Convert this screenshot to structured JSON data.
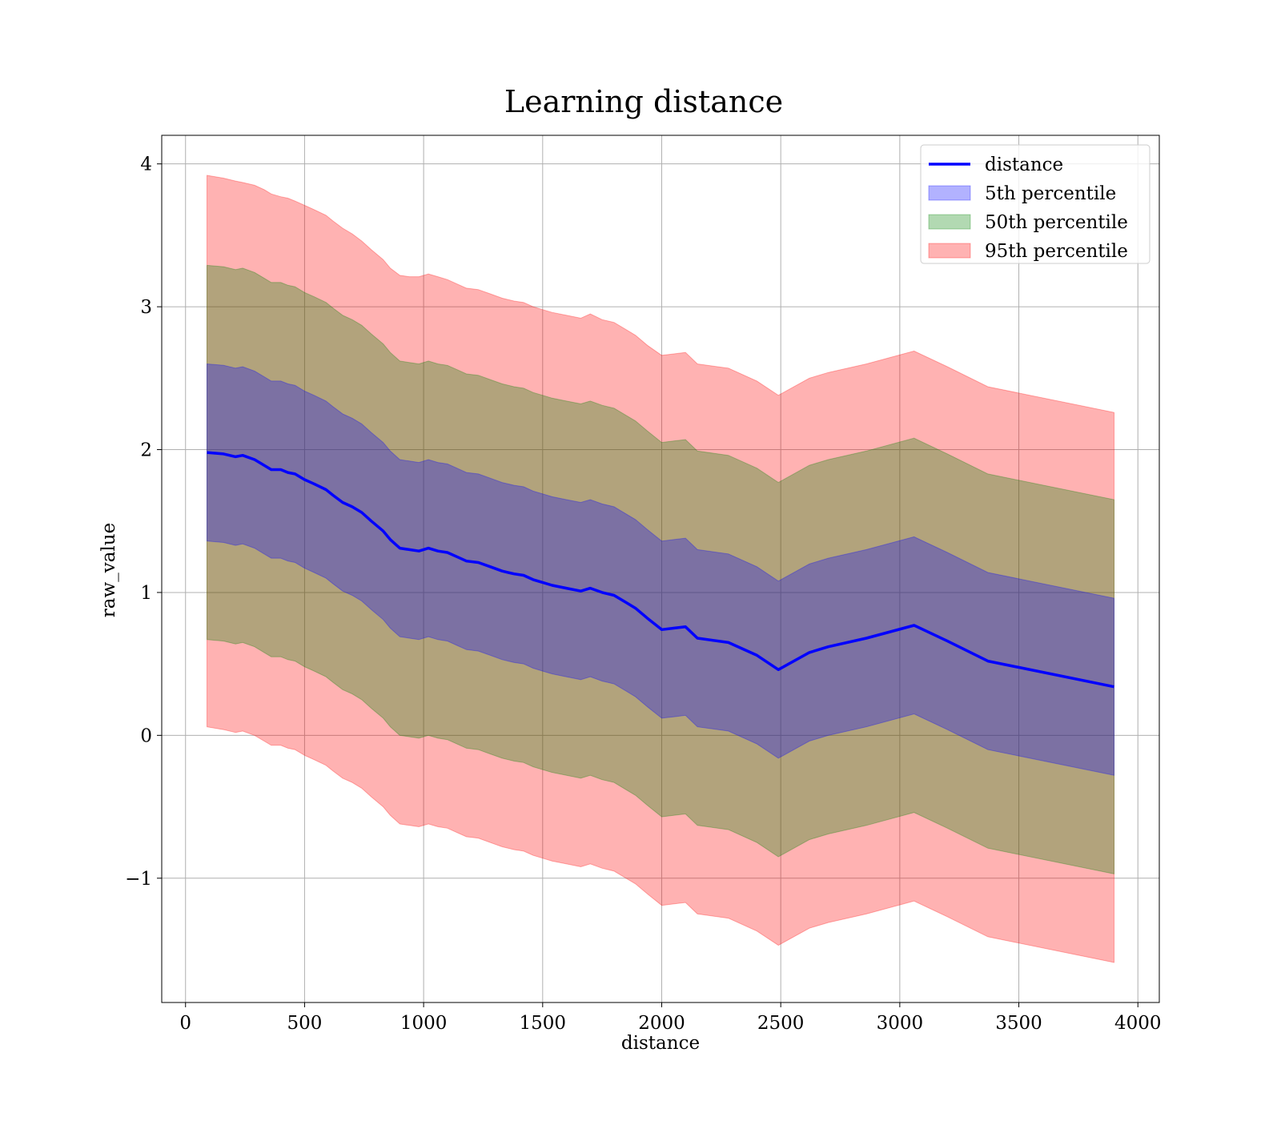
{
  "chart_data": {
    "type": "line",
    "title": "Learning distance",
    "xlabel": "distance",
    "ylabel": "raw_value",
    "xlim": [
      -100,
      4090
    ],
    "ylim": [
      -1.87,
      4.2
    ],
    "xticks": [
      0,
      500,
      1000,
      1500,
      2000,
      2500,
      3000,
      3500,
      4000
    ],
    "yticks": [
      -1,
      0,
      1,
      2,
      3,
      4
    ],
    "ytick_labels": [
      "−1",
      "0",
      "1",
      "2",
      "3",
      "4"
    ],
    "grid": true,
    "legend_position": "top-right",
    "legend": [
      {
        "label": "distance",
        "kind": "line",
        "color": "#0000ff"
      },
      {
        "label": "5th percentile",
        "kind": "patch",
        "color": "#0000ff"
      },
      {
        "label": "50th percentile",
        "kind": "patch",
        "color": "#008000"
      },
      {
        "label": "95th percentile",
        "kind": "patch",
        "color": "#ff0000"
      }
    ],
    "x": [
      90,
      160,
      210,
      240,
      290,
      330,
      360,
      400,
      430,
      460,
      500,
      540,
      590,
      620,
      660,
      700,
      740,
      780,
      830,
      860,
      900,
      940,
      980,
      1020,
      1060,
      1100,
      1140,
      1180,
      1230,
      1280,
      1330,
      1380,
      1420,
      1460,
      1500,
      1540,
      1600,
      1660,
      1700,
      1750,
      1800,
      1850,
      1890,
      1940,
      2000,
      2050,
      2100,
      2150,
      2280,
      2400,
      2490,
      2620,
      2700,
      2860,
      3060,
      3200,
      3370,
      3900
    ],
    "series": [
      {
        "name": "distance",
        "y": [
          1.98,
          1.97,
          1.95,
          1.96,
          1.93,
          1.89,
          1.86,
          1.86,
          1.84,
          1.83,
          1.79,
          1.76,
          1.72,
          1.68,
          1.63,
          1.6,
          1.56,
          1.5,
          1.43,
          1.37,
          1.31,
          1.3,
          1.29,
          1.31,
          1.29,
          1.28,
          1.25,
          1.22,
          1.21,
          1.18,
          1.15,
          1.13,
          1.12,
          1.09,
          1.07,
          1.05,
          1.03,
          1.01,
          1.03,
          1.0,
          0.98,
          0.93,
          0.89,
          0.82,
          0.74,
          0.75,
          0.76,
          0.68,
          0.65,
          0.56,
          0.46,
          0.58,
          0.62,
          0.68,
          0.77,
          0.66,
          0.52,
          0.34
        ],
        "color": "#0000ff"
      }
    ],
    "bands": [
      {
        "name": "95th percentile",
        "color": "#ff0000",
        "upper": [
          3.92,
          3.9,
          3.88,
          3.87,
          3.85,
          3.82,
          3.79,
          3.77,
          3.76,
          3.74,
          3.71,
          3.68,
          3.64,
          3.6,
          3.55,
          3.51,
          3.46,
          3.4,
          3.33,
          3.27,
          3.22,
          3.21,
          3.21,
          3.23,
          3.21,
          3.19,
          3.16,
          3.13,
          3.12,
          3.09,
          3.06,
          3.04,
          3.03,
          3.0,
          2.98,
          2.96,
          2.94,
          2.92,
          2.95,
          2.91,
          2.89,
          2.84,
          2.8,
          2.73,
          2.66,
          2.67,
          2.68,
          2.6,
          2.57,
          2.48,
          2.38,
          2.5,
          2.54,
          2.6,
          2.69,
          2.58,
          2.44,
          2.26
        ],
        "lower": [
          0.06,
          0.04,
          0.02,
          0.03,
          0.0,
          -0.04,
          -0.07,
          -0.07,
          -0.09,
          -0.1,
          -0.14,
          -0.17,
          -0.21,
          -0.25,
          -0.3,
          -0.33,
          -0.37,
          -0.43,
          -0.5,
          -0.56,
          -0.62,
          -0.63,
          -0.64,
          -0.62,
          -0.64,
          -0.65,
          -0.68,
          -0.71,
          -0.72,
          -0.75,
          -0.78,
          -0.8,
          -0.81,
          -0.84,
          -0.86,
          -0.88,
          -0.9,
          -0.92,
          -0.9,
          -0.93,
          -0.95,
          -1.0,
          -1.04,
          -1.11,
          -1.19,
          -1.18,
          -1.17,
          -1.25,
          -1.28,
          -1.37,
          -1.47,
          -1.35,
          -1.31,
          -1.25,
          -1.16,
          -1.27,
          -1.41,
          -1.59
        ]
      },
      {
        "name": "50th percentile",
        "color": "#008000",
        "upper": [
          3.29,
          3.28,
          3.26,
          3.27,
          3.24,
          3.2,
          3.17,
          3.17,
          3.15,
          3.14,
          3.1,
          3.07,
          3.03,
          2.99,
          2.94,
          2.91,
          2.87,
          2.81,
          2.74,
          2.68,
          2.62,
          2.61,
          2.6,
          2.62,
          2.6,
          2.59,
          2.56,
          2.53,
          2.52,
          2.49,
          2.46,
          2.44,
          2.43,
          2.4,
          2.38,
          2.36,
          2.34,
          2.32,
          2.34,
          2.31,
          2.29,
          2.24,
          2.2,
          2.13,
          2.05,
          2.06,
          2.07,
          1.99,
          1.96,
          1.87,
          1.77,
          1.89,
          1.93,
          1.99,
          2.08,
          1.97,
          1.83,
          1.65
        ],
        "lower": [
          0.67,
          0.66,
          0.64,
          0.65,
          0.62,
          0.58,
          0.55,
          0.55,
          0.53,
          0.52,
          0.48,
          0.45,
          0.41,
          0.37,
          0.32,
          0.29,
          0.25,
          0.19,
          0.12,
          0.06,
          0.0,
          -0.01,
          -0.02,
          0.0,
          -0.02,
          -0.03,
          -0.06,
          -0.09,
          -0.1,
          -0.13,
          -0.16,
          -0.18,
          -0.19,
          -0.22,
          -0.24,
          -0.26,
          -0.28,
          -0.3,
          -0.28,
          -0.31,
          -0.33,
          -0.38,
          -0.42,
          -0.49,
          -0.57,
          -0.56,
          -0.55,
          -0.63,
          -0.66,
          -0.75,
          -0.85,
          -0.73,
          -0.69,
          -0.63,
          -0.54,
          -0.65,
          -0.79,
          -0.97
        ]
      },
      {
        "name": "5th percentile",
        "color": "#0000ff",
        "upper": [
          2.6,
          2.59,
          2.57,
          2.58,
          2.55,
          2.51,
          2.48,
          2.48,
          2.46,
          2.45,
          2.41,
          2.38,
          2.34,
          2.3,
          2.25,
          2.22,
          2.18,
          2.12,
          2.05,
          1.99,
          1.93,
          1.92,
          1.91,
          1.93,
          1.91,
          1.9,
          1.87,
          1.84,
          1.83,
          1.8,
          1.77,
          1.75,
          1.74,
          1.71,
          1.69,
          1.67,
          1.65,
          1.63,
          1.65,
          1.62,
          1.6,
          1.55,
          1.51,
          1.44,
          1.36,
          1.37,
          1.38,
          1.3,
          1.27,
          1.18,
          1.08,
          1.2,
          1.24,
          1.3,
          1.39,
          1.28,
          1.14,
          0.96
        ],
        "lower": [
          1.36,
          1.35,
          1.33,
          1.34,
          1.31,
          1.27,
          1.24,
          1.24,
          1.22,
          1.21,
          1.17,
          1.14,
          1.1,
          1.06,
          1.01,
          0.98,
          0.94,
          0.88,
          0.81,
          0.75,
          0.69,
          0.68,
          0.67,
          0.69,
          0.67,
          0.66,
          0.63,
          0.6,
          0.59,
          0.56,
          0.53,
          0.51,
          0.5,
          0.47,
          0.45,
          0.43,
          0.41,
          0.39,
          0.41,
          0.38,
          0.36,
          0.31,
          0.27,
          0.2,
          0.12,
          0.13,
          0.14,
          0.06,
          0.03,
          -0.06,
          -0.16,
          -0.04,
          0.0,
          0.06,
          0.15,
          0.04,
          -0.1,
          -0.28
        ]
      }
    ]
  }
}
